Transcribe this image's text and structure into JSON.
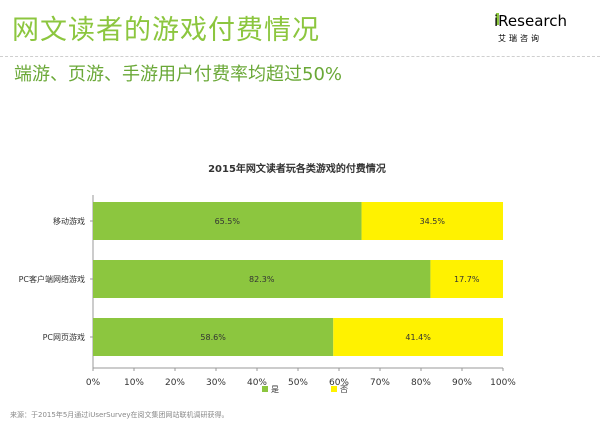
{
  "header": {
    "title": "网文读者的游戏付费情况",
    "subtitle": "端游、页游、手游用户付费率均超过50%",
    "logo": {
      "word": "iResearch",
      "tagline": "艾瑞咨询"
    }
  },
  "colors": {
    "yes": "#8cc63f",
    "no": "#fff200",
    "title": "#8cc63f"
  },
  "chart_data": {
    "type": "bar",
    "orientation": "horizontal",
    "stacked": true,
    "percent": true,
    "title": "2015年网文读者玩各类游戏的付费情况",
    "categories": [
      "移动游戏",
      "PC客户端网络游戏",
      "PC网页游戏"
    ],
    "series": [
      {
        "name": "是",
        "values": [
          65.5,
          82.3,
          58.6
        ],
        "color": "#8cc63f",
        "labels": [
          "65.5%",
          "82.3%",
          "58.6%"
        ]
      },
      {
        "name": "否",
        "values": [
          34.5,
          17.7,
          41.4
        ],
        "color": "#fff200",
        "labels": [
          "34.5%",
          "17.7%",
          "41.4%"
        ]
      }
    ],
    "xlim": [
      0,
      100
    ],
    "xticks": [
      "0%",
      "10%",
      "20%",
      "30%",
      "40%",
      "50%",
      "60%",
      "70%",
      "80%",
      "90%",
      "100%"
    ],
    "grid": false,
    "legend_position": "bottom"
  },
  "source": "来源：于2015年5月通过iUserSurvey在阅文集团网站联机调研获得。"
}
